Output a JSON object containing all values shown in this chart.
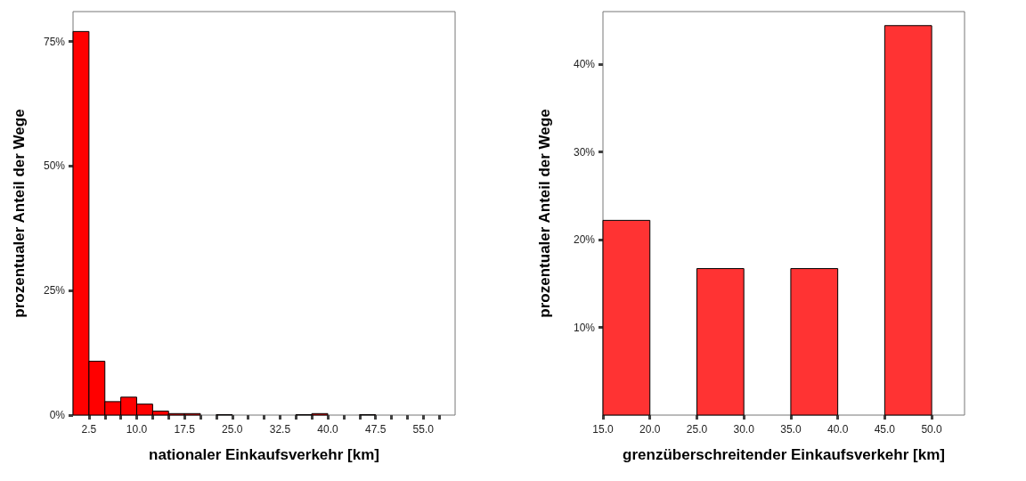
{
  "chart_data": [
    {
      "type": "histogram",
      "xlabel": "nationaler Einkaufsverkehr [km]",
      "ylabel": "prozentualer Anteil der Wege",
      "color": "#ff0000",
      "bins": [
        0,
        2.5,
        5,
        7.5,
        10,
        12.5,
        15,
        17.5,
        20,
        22.5,
        25,
        27.5,
        30,
        32.5,
        35,
        37.5,
        40,
        42.5,
        45,
        47.5,
        50,
        52.5,
        55,
        57.5,
        60
      ],
      "values": [
        77.0,
        10.8,
        2.7,
        3.6,
        2.2,
        0.8,
        0.3,
        0.3,
        0,
        0.1,
        0,
        0,
        0,
        0,
        0.1,
        0.3,
        0,
        0,
        0.1,
        0,
        0,
        0,
        0,
        0
      ],
      "xlim": [
        0,
        60
      ],
      "xticks": [
        {
          "value": 2.5,
          "label": "2.5"
        },
        {
          "value": 5,
          "label": null
        },
        {
          "value": 7.5,
          "label": null
        },
        {
          "value": 10,
          "label": "10.0"
        },
        {
          "value": 12.5,
          "label": null
        },
        {
          "value": 15,
          "label": null
        },
        {
          "value": 17.5,
          "label": "17.5"
        },
        {
          "value": 20,
          "label": null
        },
        {
          "value": 22.5,
          "label": null
        },
        {
          "value": 25,
          "label": "25.0"
        },
        {
          "value": 27.5,
          "label": null
        },
        {
          "value": 30,
          "label": null
        },
        {
          "value": 32.5,
          "label": "32.5"
        },
        {
          "value": 35,
          "label": null
        },
        {
          "value": 37.5,
          "label": null
        },
        {
          "value": 40,
          "label": "40.0"
        },
        {
          "value": 42.5,
          "label": null
        },
        {
          "value": 45,
          "label": null
        },
        {
          "value": 47.5,
          "label": "47.5"
        },
        {
          "value": 50,
          "label": null
        },
        {
          "value": 52.5,
          "label": null
        },
        {
          "value": 55,
          "label": "55.0"
        },
        {
          "value": 57.5,
          "label": null
        }
      ],
      "ylim": [
        0,
        81
      ],
      "yticks": [
        {
          "value": 0,
          "label": "0%"
        },
        {
          "value": 25,
          "label": "25%"
        },
        {
          "value": 50,
          "label": "50%"
        },
        {
          "value": 75,
          "label": "75%"
        }
      ]
    },
    {
      "type": "histogram",
      "xlabel": "grenzüberschreitender Einkaufsverkehr [km]",
      "ylabel": "prozentualer Anteil der Wege",
      "color": "#ff3333",
      "bins": [
        15,
        20,
        25,
        30,
        35,
        40,
        45,
        50
      ],
      "values": [
        22.2,
        0,
        16.7,
        0,
        16.7,
        0,
        44.4
      ],
      "xlim": [
        15,
        53.5
      ],
      "xticks": [
        {
          "value": 15,
          "label": "15.0"
        },
        {
          "value": 20,
          "label": "20.0"
        },
        {
          "value": 25,
          "label": "25.0"
        },
        {
          "value": 30,
          "label": "30.0"
        },
        {
          "value": 35,
          "label": "35.0"
        },
        {
          "value": 40,
          "label": "40.0"
        },
        {
          "value": 45,
          "label": "45.0"
        },
        {
          "value": 50,
          "label": "50.0"
        }
      ],
      "ylim": [
        0,
        46
      ],
      "yticks": [
        {
          "value": 10,
          "label": "10%"
        },
        {
          "value": 20,
          "label": "20%"
        },
        {
          "value": 30,
          "label": "30%"
        },
        {
          "value": 40,
          "label": "40%"
        }
      ]
    }
  ]
}
